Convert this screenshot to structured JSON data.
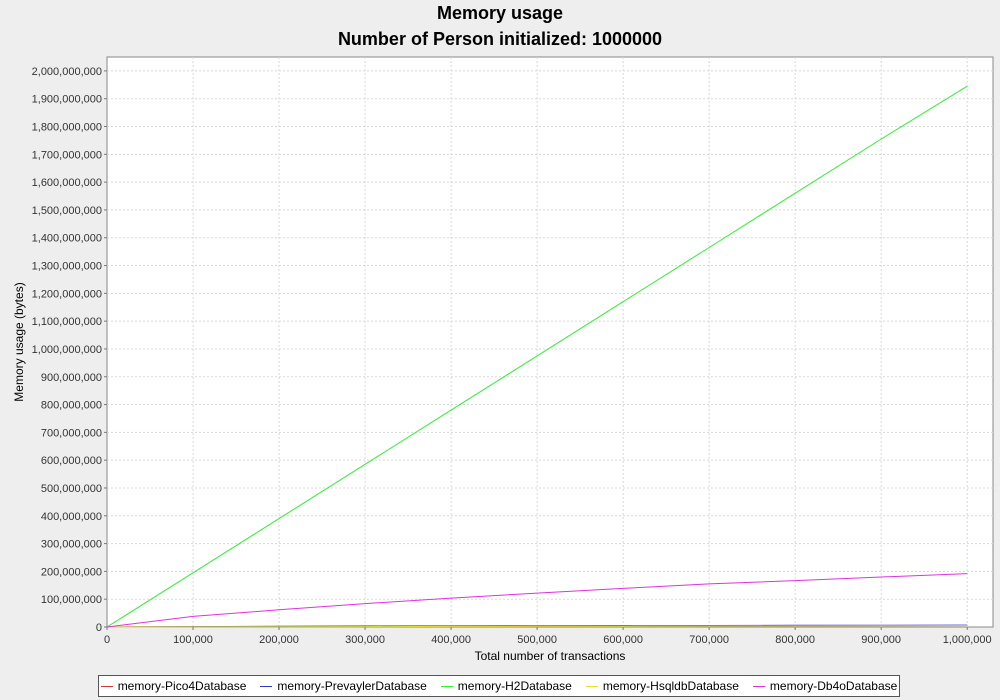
{
  "title": "Memory usage",
  "subtitle": "Number of Person initialized: 1000000",
  "chart_data": {
    "type": "line",
    "title": "Memory usage",
    "subtitle": "Number of Person initialized: 1000000",
    "xlabel": "Total number of transactions",
    "ylabel": "Memory usage (bytes)",
    "xlim": [
      0,
      1030000
    ],
    "ylim": [
      0,
      2050000000
    ],
    "xticks": [
      0,
      100000,
      200000,
      300000,
      400000,
      500000,
      600000,
      700000,
      800000,
      900000,
      1000000
    ],
    "xtick_labels": [
      "0",
      "100,000",
      "200,000",
      "300,000",
      "400,000",
      "500,000",
      "600,000",
      "700,000",
      "800,000",
      "900,000",
      "1,000,000"
    ],
    "yticks": [
      0,
      100000000,
      200000000,
      300000000,
      400000000,
      500000000,
      600000000,
      700000000,
      800000000,
      900000000,
      1000000000,
      1100000000,
      1200000000,
      1300000000,
      1400000000,
      1500000000,
      1600000000,
      1700000000,
      1800000000,
      1900000000,
      2000000000
    ],
    "ytick_labels": [
      "0",
      "100,000,000",
      "200,000,000",
      "300,000,000",
      "400,000,000",
      "500,000,000",
      "600,000,000",
      "700,000,000",
      "800,000,000",
      "900,000,000",
      "1,000,000,000",
      "1,100,000,000",
      "1,200,000,000",
      "1,300,000,000",
      "1,400,000,000",
      "1,500,000,000",
      "1,600,000,000",
      "1,700,000,000",
      "1,800,000,000",
      "1,900,000,000",
      "2,000,000,000"
    ],
    "grid": true,
    "legend_position": "bottom",
    "x": [
      0,
      100000,
      200000,
      300000,
      400000,
      500000,
      600000,
      700000,
      800000,
      900000,
      1000000
    ],
    "series": [
      {
        "name": "memory-Pico4Database",
        "color": "#cc3333",
        "values": [
          0,
          1000000,
          1500000,
          2000000,
          2500000,
          3000000,
          3500000,
          4000000,
          4500000,
          5000000,
          5500000
        ]
      },
      {
        "name": "memory-PrevaylerDatabase",
        "color": "#3333cc",
        "values": [
          0,
          1500000,
          2500000,
          3500000,
          4000000,
          4500000,
          5000000,
          5500000,
          6000000,
          6500000,
          7000000
        ]
      },
      {
        "name": "memory-H2Database",
        "color": "#33ee33",
        "values": [
          0,
          195000000,
          390000000,
          585000000,
          780000000,
          975000000,
          1170000000,
          1365000000,
          1560000000,
          1755000000,
          1945000000
        ]
      },
      {
        "name": "memory-HsqldbDatabase",
        "color": "#dddd33",
        "values": [
          0,
          500000,
          1000000,
          1500000,
          2000000,
          2500000,
          3000000,
          3500000,
          4000000,
          4500000,
          5000000
        ]
      },
      {
        "name": "memory-Db4oDatabase",
        "color": "#dd33dd",
        "values": [
          0,
          38000000,
          62000000,
          84000000,
          104000000,
          122000000,
          139000000,
          155000000,
          167000000,
          180000000,
          192000000
        ]
      }
    ]
  }
}
